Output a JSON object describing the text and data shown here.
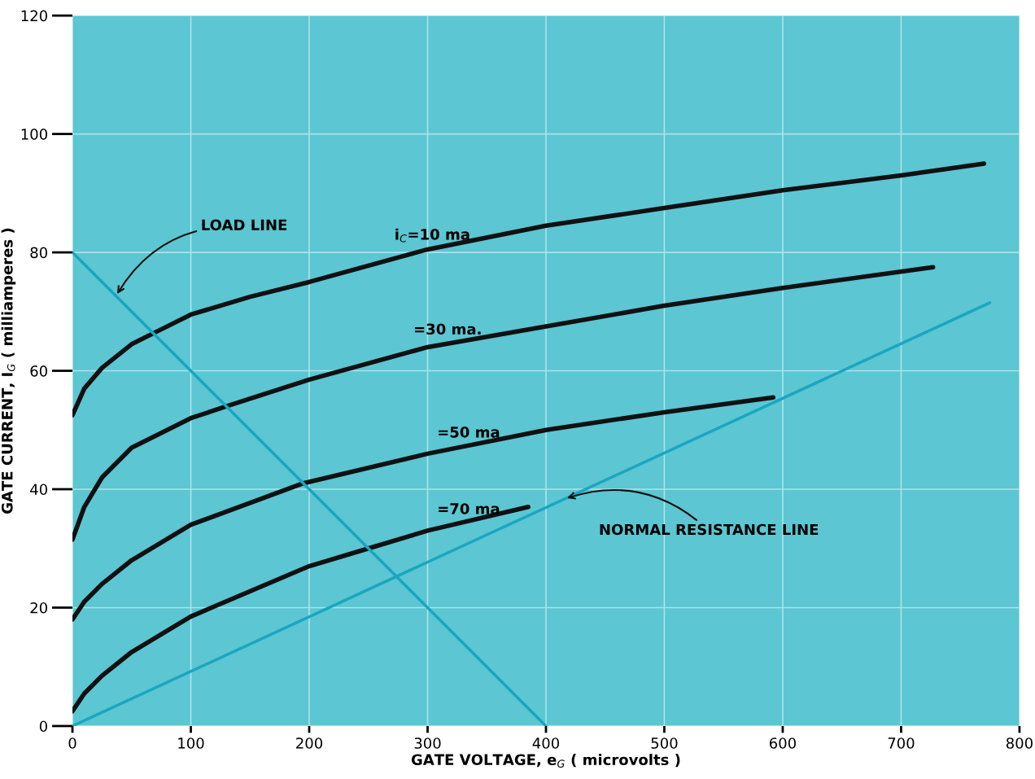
{
  "chart_data": {
    "type": "line",
    "xlabel": "GATE VOLTAGE, e$_{G}$ ( microvolts )",
    "ylabel": "GATE CURRENT, I$_{G}$ ( milliamperes )",
    "xlim": [
      0,
      800
    ],
    "ylim": [
      0,
      120
    ],
    "xticks": [
      0,
      100,
      200,
      300,
      400,
      500,
      600,
      700,
      800
    ],
    "yticks": [
      0,
      20,
      40,
      60,
      80,
      100,
      120
    ],
    "grid": true,
    "legend": false,
    "marker": "none",
    "line_style": "solid",
    "series": [
      {
        "name": "i$_{C}$=10 ma",
        "color": "#111111",
        "x": [
          0,
          10,
          25,
          50,
          75,
          100,
          150,
          200,
          300,
          400,
          500,
          600,
          700,
          770
        ],
        "values": [
          52.5,
          57,
          60.5,
          64.5,
          67,
          69.5,
          72.5,
          75,
          80.5,
          84.5,
          87.5,
          90.5,
          93,
          95
        ]
      },
      {
        "name": "=30 ma.",
        "color": "#111111",
        "x": [
          0,
          10,
          25,
          50,
          100,
          130,
          200,
          300,
          400,
          500,
          600,
          727
        ],
        "values": [
          31.5,
          37,
          42,
          47,
          52,
          54,
          58.5,
          64,
          67.5,
          71,
          74,
          77.5
        ]
      },
      {
        "name": "=50 ma",
        "color": "#111111",
        "x": [
          0,
          10,
          25,
          50,
          100,
          195,
          300,
          400,
          500,
          592
        ],
        "values": [
          18,
          21,
          24,
          28,
          34,
          41,
          46,
          50,
          53,
          55.5
        ]
      },
      {
        "name": "=70 ma",
        "color": "#111111",
        "x": [
          0,
          10,
          25,
          50,
          100,
          200,
          250,
          300,
          385
        ],
        "values": [
          2.5,
          5.5,
          8.5,
          12.5,
          18.5,
          27,
          30,
          33,
          37
        ]
      },
      {
        "name": "LOAD LINE",
        "color": "#1aa6c0",
        "x": [
          0,
          400
        ],
        "values": [
          80,
          0
        ]
      },
      {
        "name": "NORMAL RESISTANCE LINE",
        "color": "#1aa6c0",
        "x": [
          0,
          775
        ],
        "values": [
          0,
          71.5
        ]
      }
    ]
  }
}
